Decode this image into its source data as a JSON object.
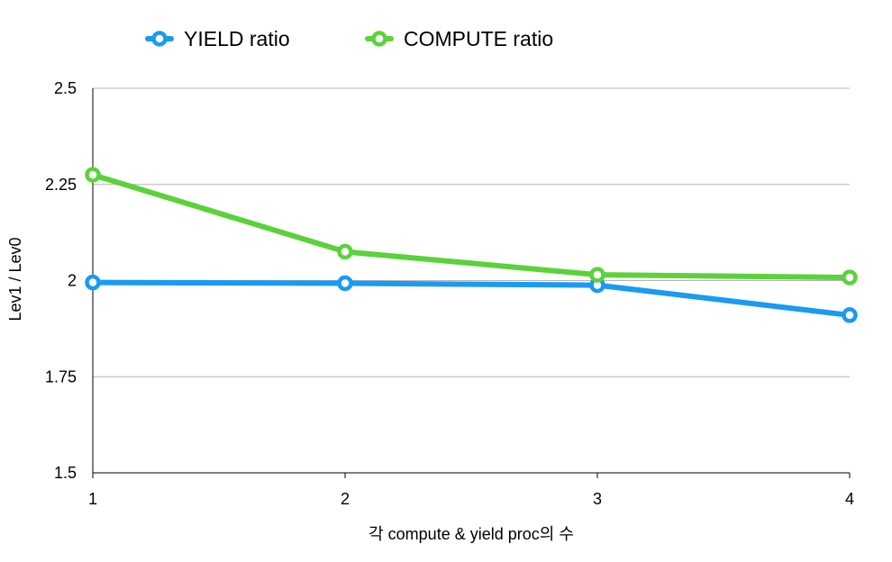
{
  "chart_data": {
    "type": "line",
    "title": "",
    "xlabel": "각 compute & yield proc의 수",
    "ylabel": "Lev1 / Lev0",
    "categories": [
      "1",
      "2",
      "3",
      "4"
    ],
    "x": [
      1,
      2,
      3,
      4
    ],
    "ylim": [
      1.5,
      2.5
    ],
    "yticks": [
      "1.5",
      "1.75",
      "2",
      "2.25",
      "2.5"
    ],
    "grid": true,
    "legend_position": "top",
    "series": [
      {
        "name": "YIELD ratio",
        "color": "#1a9af2",
        "values": [
          1.995,
          1.993,
          1.988,
          1.91
        ]
      },
      {
        "name": "COMPUTE ratio",
        "color": "#5bd23b",
        "values": [
          2.275,
          2.075,
          2.015,
          2.008
        ]
      }
    ]
  }
}
